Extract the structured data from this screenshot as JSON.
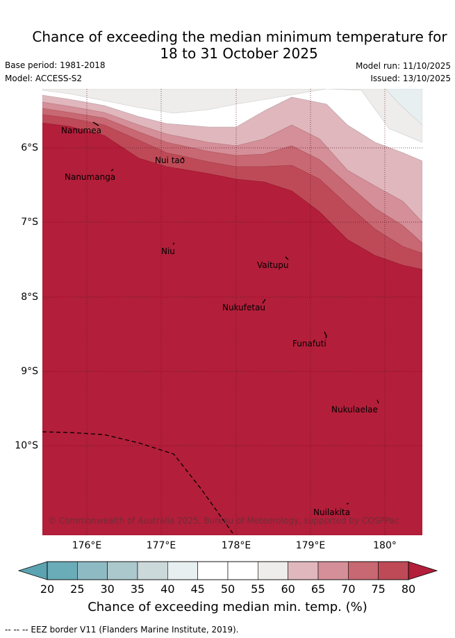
{
  "title_line1": "Chance of exceeding the median minimum temperature for",
  "title_line2": "18 to 31 October 2025",
  "base_period": "Base period: 1981-2018",
  "model": "Model: ACCESS-S2",
  "model_run": "Model run: 11/10/2025",
  "issued": "Issued: 13/10/2025",
  "lat_labels": [
    "6°S",
    "7°S",
    "8°S",
    "9°S",
    "10°S"
  ],
  "lon_labels": [
    "176°E",
    "177°E",
    "178°E",
    "179°E",
    "180°"
  ],
  "places": [
    {
      "name": "Nanumea",
      "lon": 176.07,
      "lat": -5.67
    },
    {
      "name": "Nui tao",
      "lon": 177.3,
      "lat": -6.1
    },
    {
      "name": "Nanumanga",
      "lon": 176.32,
      "lat": -6.29
    },
    {
      "name": "Niu",
      "lon": 177.16,
      "lat": -7.28
    },
    {
      "name": "Vaitupu",
      "lon": 178.67,
      "lat": -7.48
    },
    {
      "name": "Nukufetau",
      "lon": 178.37,
      "lat": -8.0
    },
    {
      "name": "Funafuti",
      "lon": 179.2,
      "lat": -8.52
    },
    {
      "name": "Nukulaelae",
      "lon": 179.83,
      "lat": -9.38
    },
    {
      "name": "Nuilakita",
      "lon": 179.47,
      "lat": -10.78
    }
  ],
  "copyright": "© Commonwealth of Australia 2025, Bureau of Meteorology, supported by COSPPac",
  "colorbar": {
    "ticks": [
      "20",
      "25",
      "30",
      "35",
      "40",
      "45",
      "50",
      "55",
      "60",
      "65",
      "70",
      "75",
      "80"
    ],
    "colors": [
      "#6aacb8",
      "#8ebac4",
      "#abc8cc",
      "#ccd9db",
      "#e8eff1",
      "#ffffff",
      "#ffffff",
      "#eeedeb",
      "#e0b7bd",
      "#d48f98",
      "#c86872",
      "#be4a57",
      "#b31e3a"
    ],
    "label": "Chance of exceeding median min. temp. (%)"
  },
  "footer": "-- -- -- EEZ border V11 (Flanders Marine Institute, 2019)."
}
